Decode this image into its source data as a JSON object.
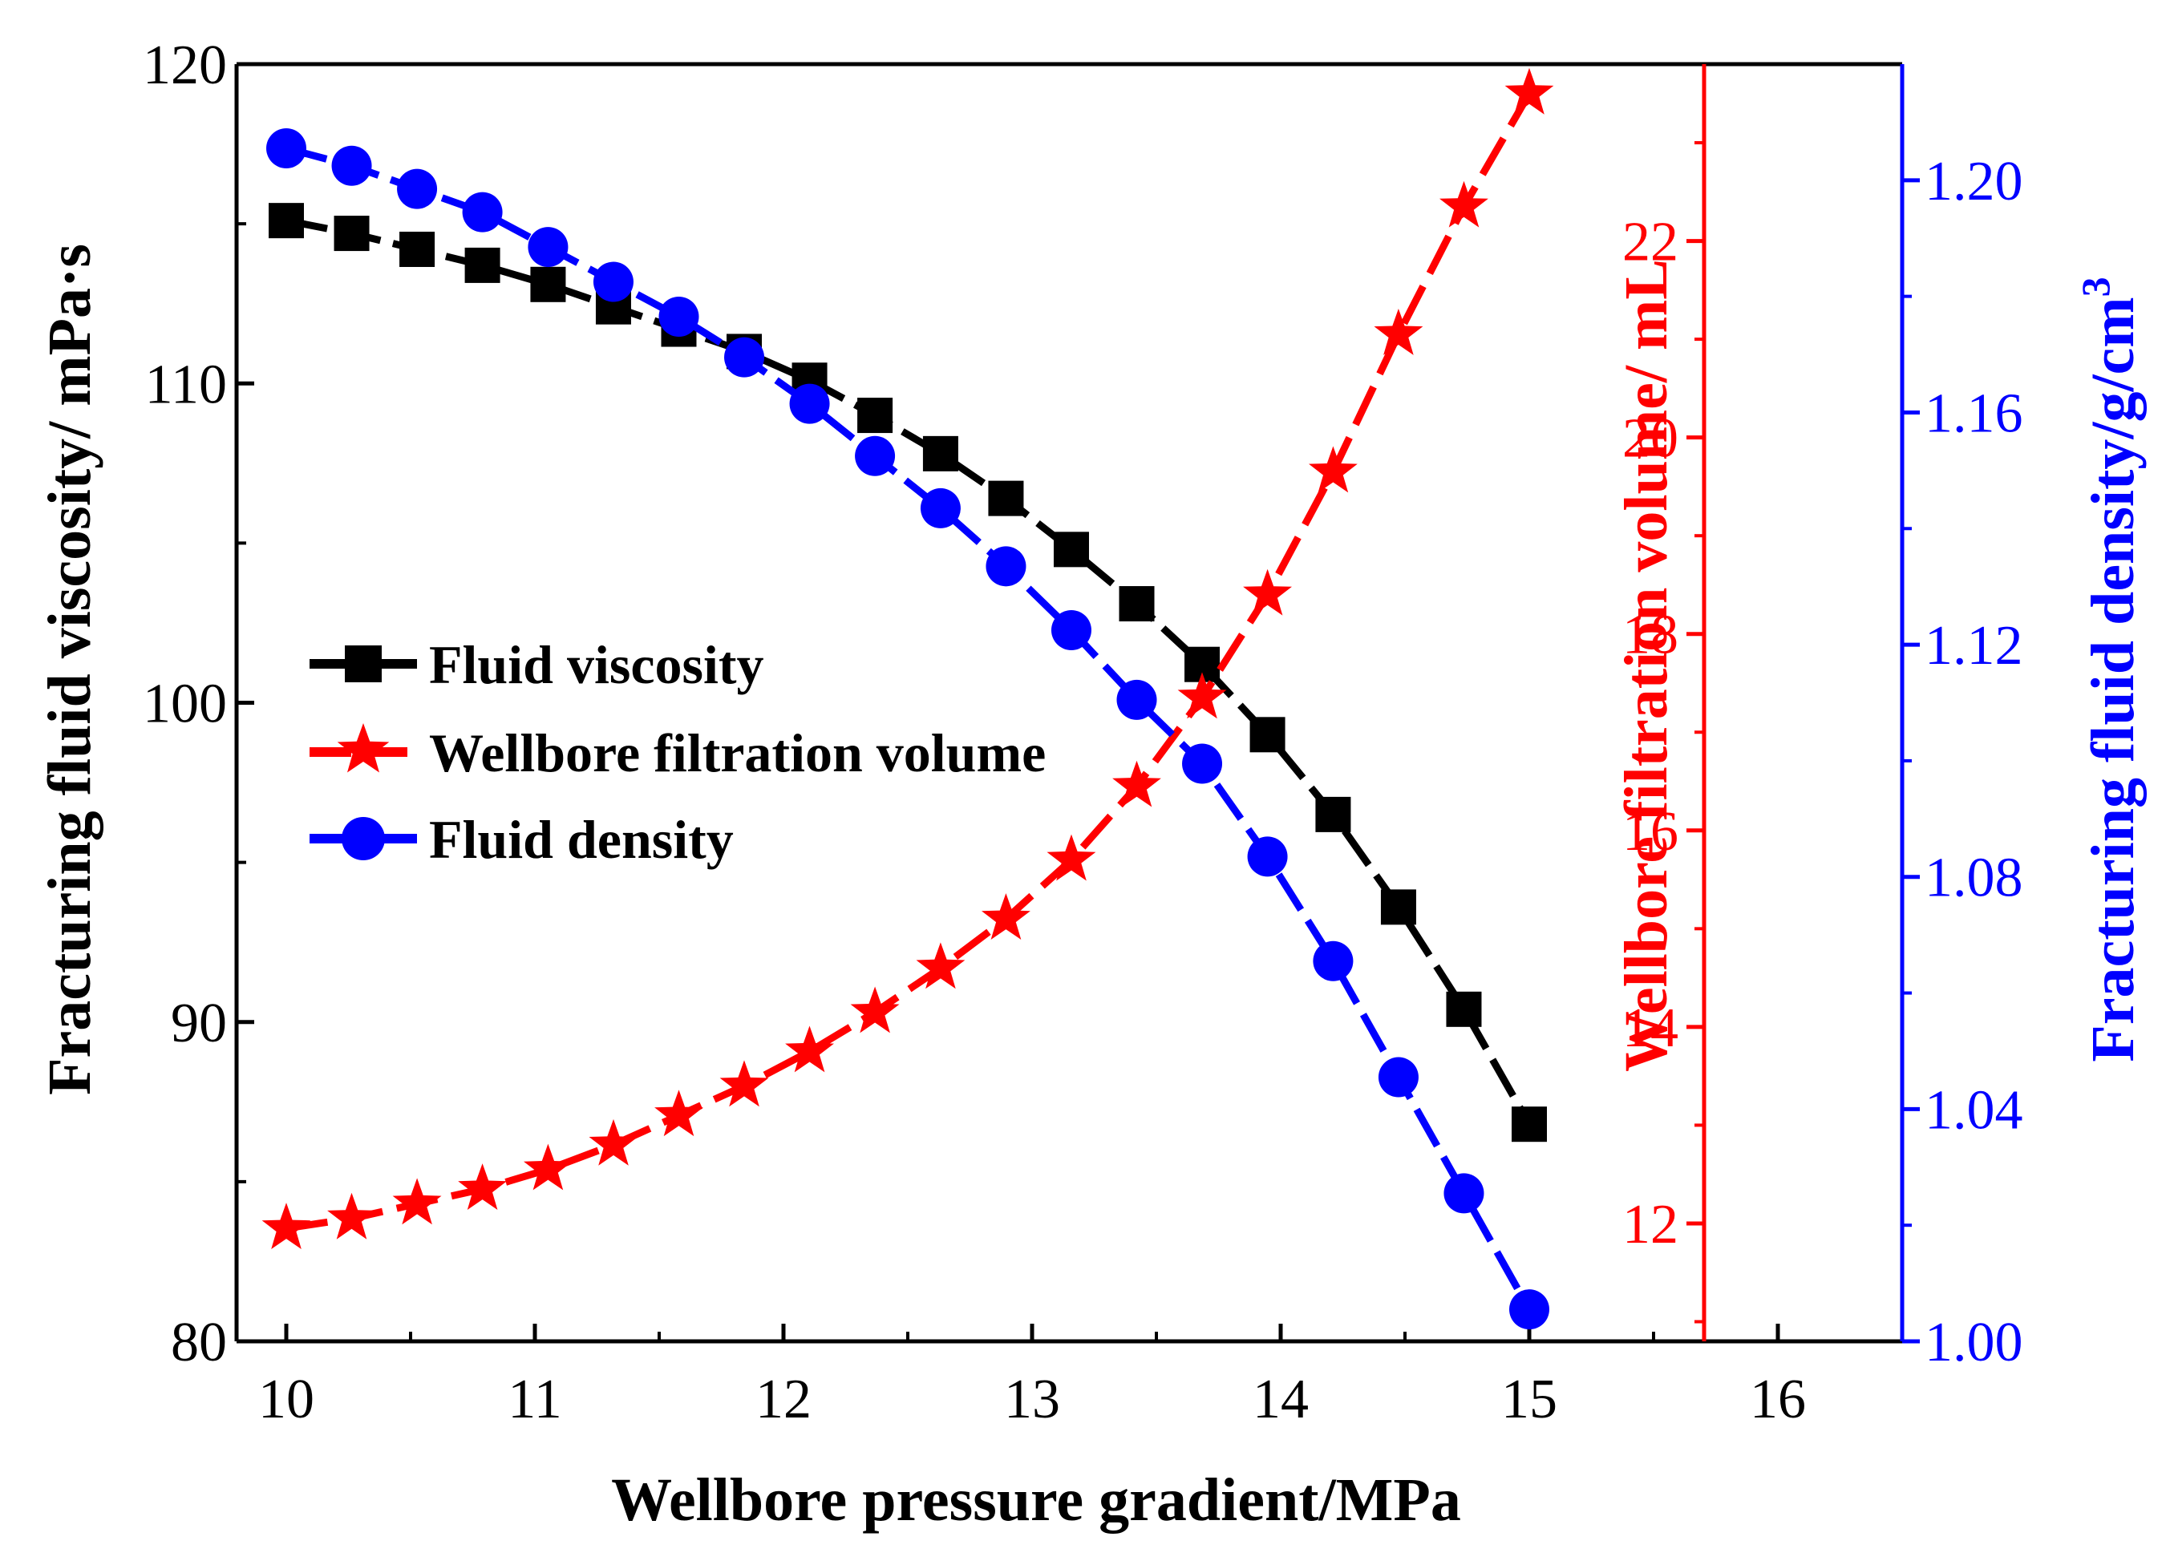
{
  "chart_data": {
    "type": "line",
    "x": [
      10,
      10.263,
      10.526,
      10.789,
      11.053,
      11.316,
      11.579,
      11.842,
      12.105,
      12.368,
      12.632,
      12.895,
      13.158,
      13.421,
      13.684,
      13.947,
      14.211,
      14.474,
      14.737,
      15
    ],
    "xlabel": "Wellbore pressure gradient/MPa",
    "xlim": [
      9.8,
      16.5
    ],
    "xticks": [
      "10",
      "11",
      "12",
      "13",
      "14",
      "15",
      "16"
    ],
    "axes": {
      "left": {
        "label": "Fracturing fluid viscosity/ mPa·s",
        "lim": [
          80,
          120
        ],
        "ticks": [
          "80",
          "90",
          "100",
          "110",
          "120"
        ],
        "color": "#000000"
      },
      "right_inner": {
        "label": "Wellbore filtration volume/ mL",
        "lim": [
          10.8,
          23.8
        ],
        "ticks": [
          "12",
          "14",
          "16",
          "18",
          "20",
          "22"
        ],
        "color": "#ff0000"
      },
      "right_outer": {
        "label": "Fracturing fluid density/g/cm",
        "label_superscript": "3",
        "lim": [
          1.0,
          1.22
        ],
        "ticks": [
          "1.00",
          "1.04",
          "1.08",
          "1.12",
          "1.16",
          "1.20"
        ],
        "color": "#0000ff"
      }
    },
    "series": [
      {
        "name": "Fluid viscosity",
        "axis": "left",
        "color": "#000000",
        "marker": "square",
        "values": [
          115.1,
          114.7,
          114.2,
          113.7,
          113.1,
          112.4,
          111.7,
          111.0,
          110.1,
          109.0,
          107.8,
          106.4,
          104.8,
          103.1,
          101.2,
          99.0,
          96.5,
          93.6,
          90.4,
          86.8
        ]
      },
      {
        "name": "Wellbore filtration volume",
        "axis": "right_inner",
        "color": "#ff0000",
        "marker": "star",
        "values": [
          11.95,
          12.05,
          12.2,
          12.35,
          12.55,
          12.8,
          13.1,
          13.4,
          13.75,
          14.15,
          14.6,
          15.1,
          15.7,
          16.45,
          17.35,
          18.4,
          19.65,
          21.05,
          22.35,
          23.5
        ]
      },
      {
        "name": "Fluid density",
        "axis": "right_outer",
        "color": "#0000ff",
        "marker": "circle",
        "values": [
          1.2055,
          1.2025,
          1.1985,
          1.1945,
          1.1885,
          1.1825,
          1.1765,
          1.1695,
          1.1615,
          1.1525,
          1.1435,
          1.1335,
          1.1225,
          1.1105,
          1.0995,
          1.0835,
          1.0655,
          1.0455,
          1.0255,
          1.0055
        ]
      }
    ],
    "legend": {
      "position": "center-left",
      "entries": [
        "Fluid viscosity",
        "Wellbore filtration volume",
        "Fluid density"
      ]
    }
  }
}
